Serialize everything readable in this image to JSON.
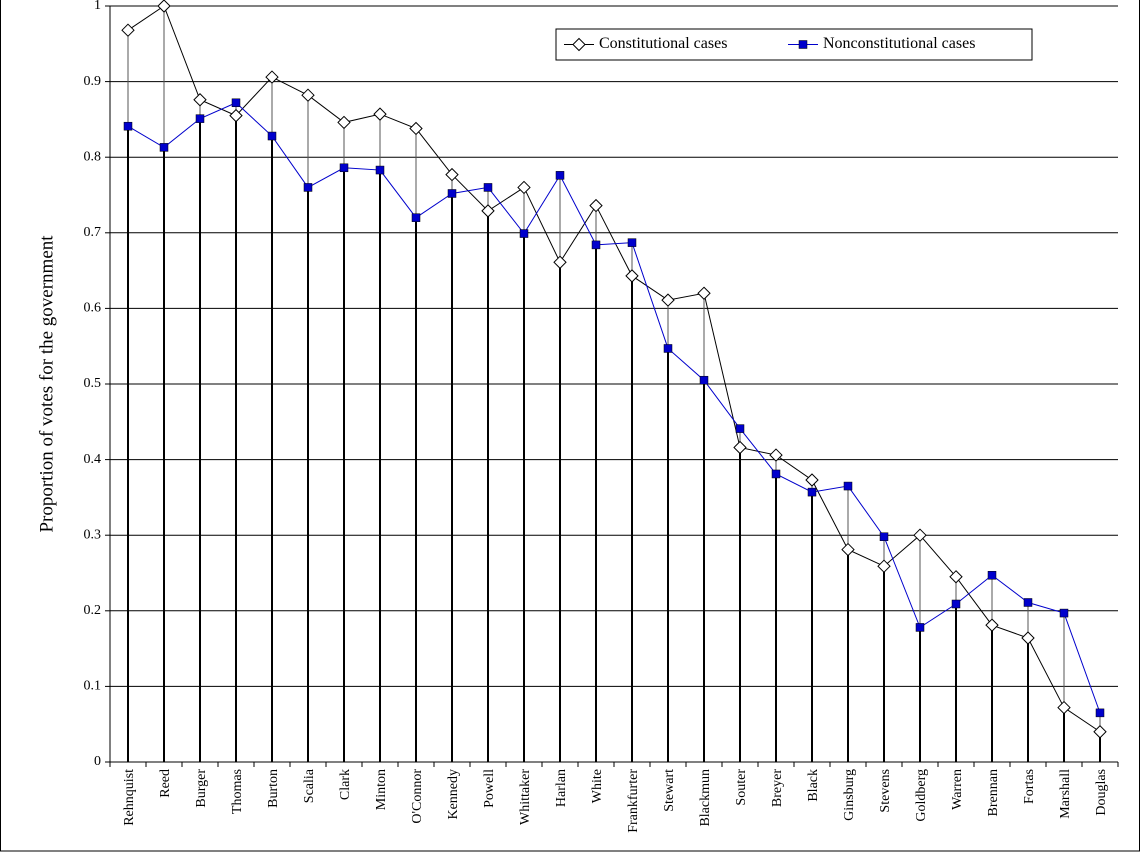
{
  "chart_data": {
    "type": "line",
    "y_label": "Proportion of votes for the government",
    "categories": [
      "Rehnquist",
      "Reed",
      "Burger",
      "Thomas",
      "Burton",
      "Scalia",
      "Clark",
      "Minton",
      "O'Connor",
      "Kennedy",
      "Powell",
      "Whittaker",
      "Harlan",
      "White",
      "Frankfurter",
      "Stewart",
      "Blackmun",
      "Souter",
      "Breyer",
      "Black",
      "Ginsburg",
      "Stevens",
      "Goldberg",
      "Warren",
      "Brennan",
      "Fortas",
      "Marshall",
      "Douglas"
    ],
    "series": [
      {
        "name": "Constitutional cases",
        "color": "#000000",
        "marker": "diamond",
        "values": [
          0.968,
          1.0,
          0.876,
          0.855,
          0.906,
          0.882,
          0.846,
          0.857,
          0.838,
          0.777,
          0.729,
          0.76,
          0.661,
          0.736,
          0.643,
          0.611,
          0.62,
          0.416,
          0.406,
          0.373,
          0.281,
          0.259,
          0.3,
          0.245,
          0.181,
          0.164,
          0.072,
          0.04
        ]
      },
      {
        "name": "Nonconstitutional cases",
        "color": "#0000cc",
        "marker": "square",
        "values": [
          0.841,
          0.813,
          0.851,
          0.872,
          0.828,
          0.76,
          0.786,
          0.783,
          0.72,
          0.752,
          0.76,
          0.699,
          0.776,
          0.684,
          0.687,
          0.547,
          0.505,
          0.441,
          0.381,
          0.357,
          0.365,
          0.298,
          0.178,
          0.209,
          0.247,
          0.211,
          0.197,
          0.065
        ]
      }
    ],
    "ylim": [
      0,
      1
    ],
    "yticks": [
      0,
      0.1,
      0.2,
      0.3,
      0.4,
      0.5,
      0.6,
      0.7,
      0.8,
      0.9,
      1
    ],
    "grid": true,
    "legend": "upper-right"
  }
}
